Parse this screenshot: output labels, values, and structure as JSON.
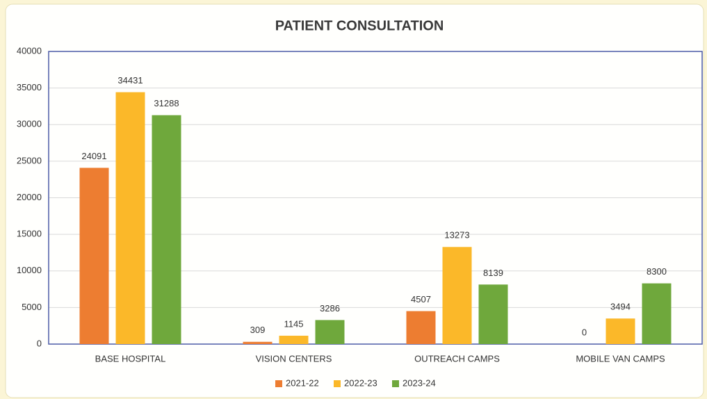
{
  "chart_data": {
    "type": "bar",
    "title": "PATIENT CONSULTATION",
    "categories": [
      "BASE HOSPITAL",
      "VISION CENTERS",
      "OUTREACH CAMPS",
      "MOBILE VAN CAMPS"
    ],
    "series": [
      {
        "name": "2021-22",
        "color": "#ed7d31",
        "values": [
          24091,
          309,
          4507,
          0
        ]
      },
      {
        "name": "2022-23",
        "color": "#fbb829",
        "values": [
          34431,
          1145,
          13273,
          3494
        ]
      },
      {
        "name": "2023-24",
        "color": "#6fa83c",
        "values": [
          31288,
          3286,
          8139,
          8300
        ]
      }
    ],
    "ylim": [
      0,
      40000
    ],
    "yticks": [
      0,
      5000,
      10000,
      15000,
      20000,
      25000,
      30000,
      35000,
      40000
    ],
    "grid": true,
    "legend": "bottom"
  }
}
